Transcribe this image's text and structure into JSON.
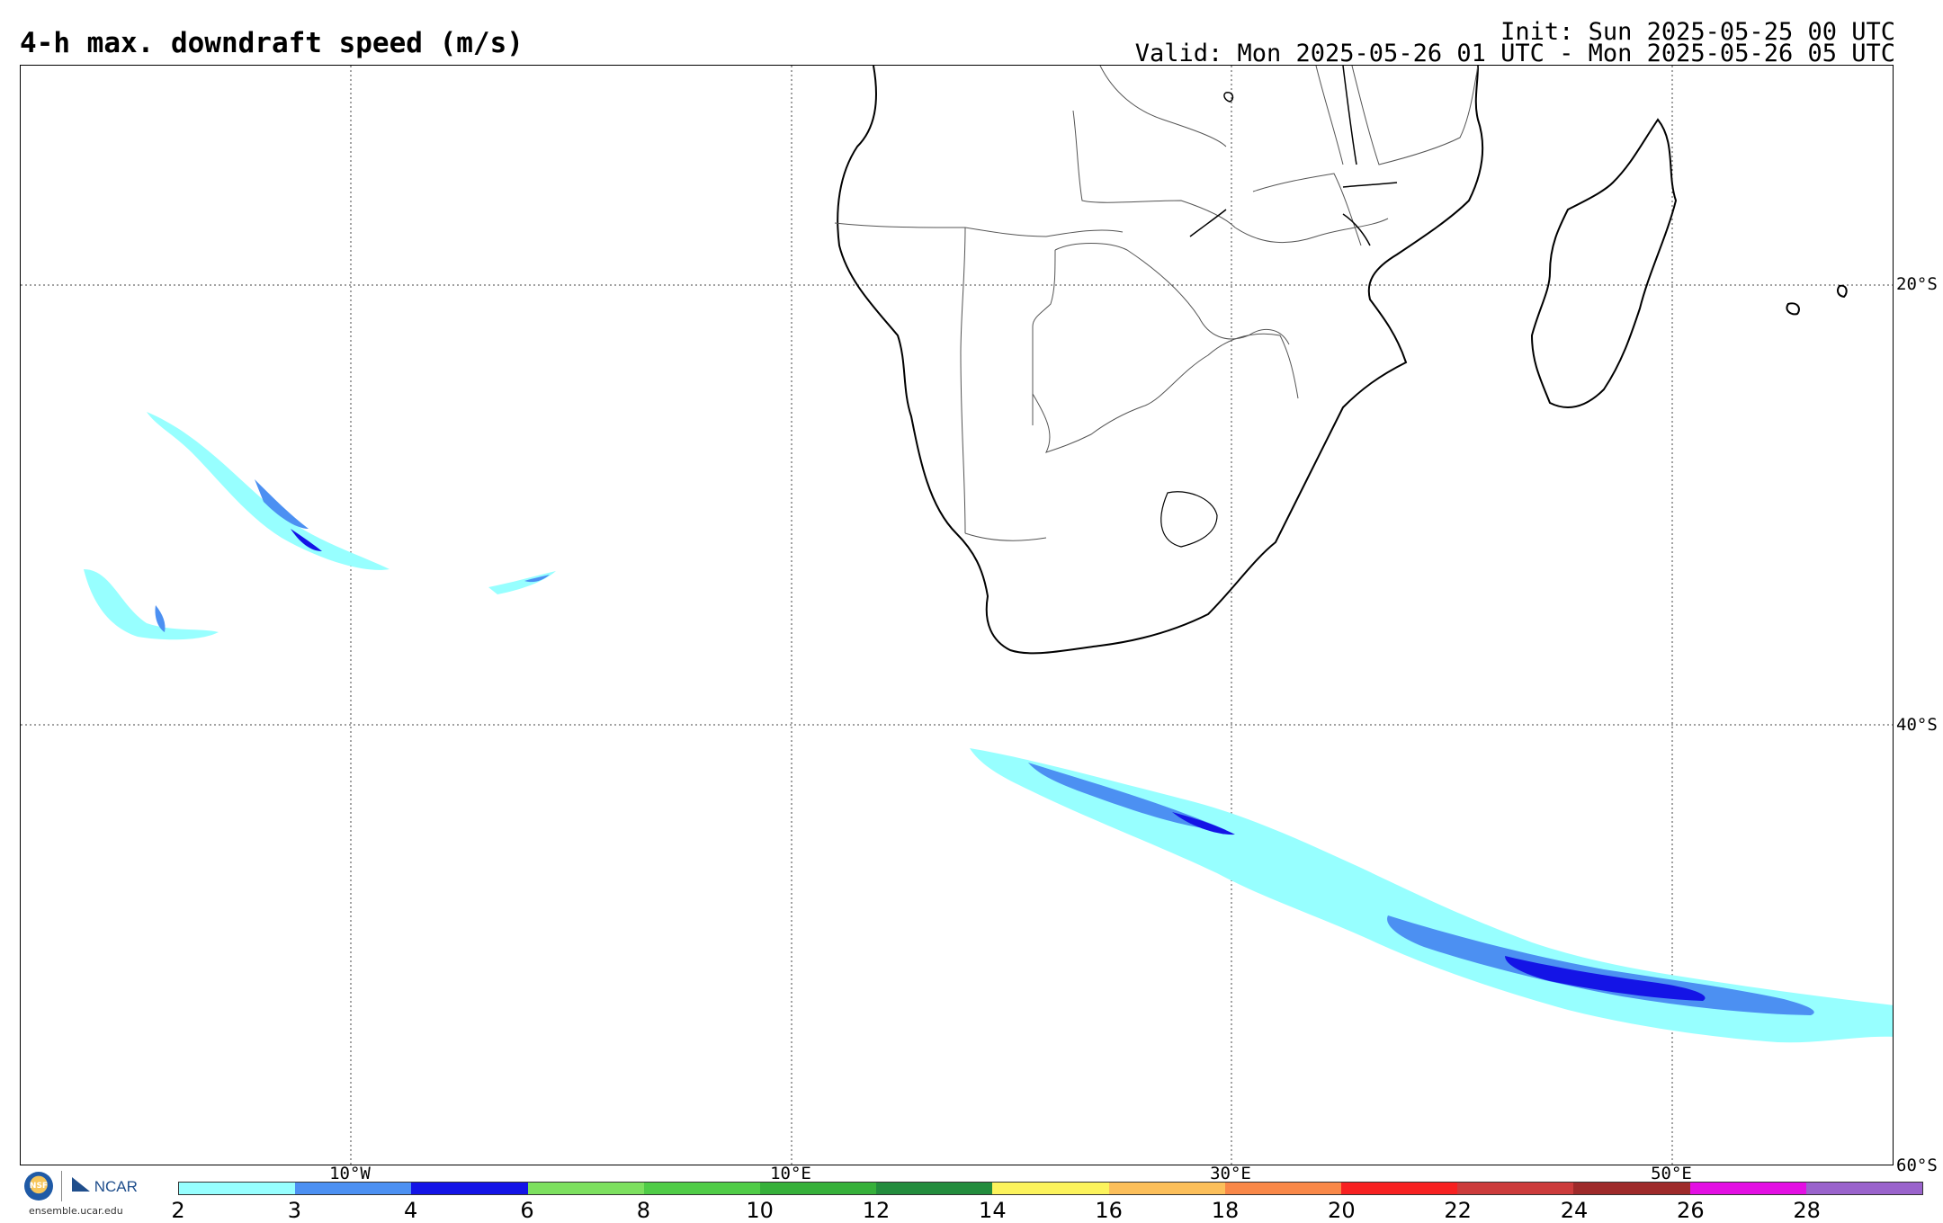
{
  "header": {
    "title": "4-h max. downdraft speed (m/s)",
    "init": "Init: Sun 2025-05-25 00 UTC",
    "valid": "Valid: Mon 2025-05-26 01 UTC - Mon 2025-05-26 05 UTC"
  },
  "map": {
    "lat_labels": [
      "20°S",
      "40°S",
      "60°S"
    ],
    "lon_labels": [
      "10°W",
      "10°E",
      "30°E",
      "50°E"
    ],
    "grid": true
  },
  "colorbar": {
    "ticks": [
      "2",
      "3",
      "4",
      "6",
      "8",
      "10",
      "12",
      "14",
      "16",
      "18",
      "20",
      "22",
      "24",
      "26",
      "28"
    ],
    "colors": [
      "#97ffff",
      "#4c90f2",
      "#1414e6",
      "#7de05f",
      "#50cc47",
      "#36b03a",
      "#238c3d",
      "#fcf35c",
      "#fcbf5a",
      "#f98848",
      "#f72121",
      "#cc3b3b",
      "#9e2a2a",
      "#e30fe3",
      "#9a63cc"
    ]
  },
  "logo": {
    "nsf": "NSF",
    "ncar": "NCAR",
    "url": "ensemble.ucar.edu"
  }
}
